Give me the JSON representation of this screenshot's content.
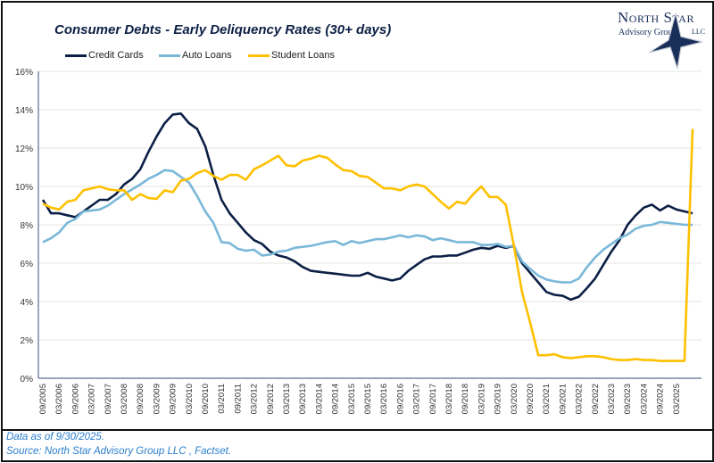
{
  "chart_data": {
    "type": "line",
    "title": "Consumer Debts - Early Deliquency Rates (30+ days)",
    "xlabel": "",
    "ylabel": "",
    "ylim": [
      0,
      16
    ],
    "yticks": [
      "0%",
      "2%",
      "4%",
      "6%",
      "8%",
      "10%",
      "12%",
      "14%",
      "16%"
    ],
    "grid": true,
    "legend_position": "top",
    "x": [
      "09/2005",
      "12/2005",
      "03/2006",
      "06/2006",
      "09/2006",
      "12/2006",
      "03/2007",
      "06/2007",
      "09/2007",
      "12/2007",
      "03/2008",
      "06/2008",
      "09/2008",
      "12/2008",
      "03/2009",
      "06/2009",
      "09/2009",
      "12/2009",
      "03/2010",
      "06/2010",
      "09/2010",
      "12/2010",
      "03/2011",
      "06/2011",
      "09/2011",
      "12/2011",
      "03/2012",
      "06/2012",
      "09/2012",
      "12/2012",
      "03/2013",
      "06/2013",
      "09/2013",
      "12/2013",
      "03/2014",
      "06/2014",
      "09/2014",
      "12/2014",
      "03/2015",
      "06/2015",
      "09/2015",
      "12/2015",
      "03/2016",
      "06/2016",
      "09/2016",
      "12/2016",
      "03/2017",
      "06/2017",
      "09/2017",
      "12/2017",
      "03/2018",
      "06/2018",
      "09/2018",
      "12/2018",
      "03/2019",
      "06/2019",
      "09/2019",
      "12/2019",
      "03/2020",
      "06/2020",
      "09/2020",
      "12/2020",
      "03/2021",
      "06/2021",
      "09/2021",
      "12/2021",
      "03/2022",
      "06/2022",
      "09/2022",
      "12/2022",
      "03/2023",
      "06/2023",
      "09/2023",
      "12/2023",
      "03/2024",
      "06/2024",
      "09/2024",
      "12/2024",
      "03/2025",
      "06/2025",
      "09/2025"
    ],
    "xticks": [
      "09/2005",
      "03/2006",
      "09/2006",
      "03/2007",
      "09/2007",
      "03/2008",
      "09/2008",
      "03/2009",
      "09/2009",
      "03/2010",
      "09/2010",
      "03/2011",
      "09/2011",
      "03/2012",
      "09/2012",
      "03/2013",
      "09/2013",
      "03/2014",
      "09/2014",
      "03/2015",
      "09/2015",
      "03/2016",
      "09/2016",
      "03/2017",
      "09/2017",
      "03/2018",
      "09/2018",
      "03/2019",
      "09/2019",
      "03/2020",
      "09/2020",
      "03/2021",
      "09/2021",
      "03/2022",
      "09/2022",
      "03/2023",
      "09/2023",
      "03/2024",
      "09/2024",
      "03/2025"
    ],
    "series": [
      {
        "name": "Credit Cards",
        "color": "#0c1f45",
        "values": [
          9.3,
          8.6,
          8.6,
          8.5,
          8.4,
          8.7,
          9.0,
          9.3,
          9.3,
          9.6,
          10.1,
          10.4,
          10.9,
          11.8,
          12.6,
          13.3,
          13.75,
          13.8,
          13.3,
          13.0,
          12.1,
          10.6,
          9.3,
          8.6,
          8.1,
          7.6,
          7.2,
          7.0,
          6.6,
          6.4,
          6.3,
          6.1,
          5.8,
          5.6,
          5.55,
          5.5,
          5.45,
          5.4,
          5.35,
          5.35,
          5.5,
          5.3,
          5.2,
          5.1,
          5.2,
          5.6,
          5.9,
          6.2,
          6.35,
          6.35,
          6.4,
          6.4,
          6.55,
          6.7,
          6.8,
          6.75,
          6.9,
          6.8,
          6.9,
          6.0,
          5.5,
          5.0,
          4.5,
          4.35,
          4.3,
          4.1,
          4.25,
          4.7,
          5.2,
          5.9,
          6.6,
          7.2,
          8.0,
          8.5,
          8.9,
          9.05,
          8.75,
          9.0,
          8.8,
          8.7,
          8.6
        ]
      },
      {
        "name": "Auto Loans",
        "color": "#7ab8d9",
        "values": [
          7.1,
          7.3,
          7.6,
          8.1,
          8.3,
          8.7,
          8.75,
          8.8,
          9.0,
          9.3,
          9.6,
          9.85,
          10.1,
          10.4,
          10.6,
          10.85,
          10.8,
          10.5,
          10.2,
          9.5,
          8.7,
          8.1,
          7.1,
          7.05,
          6.75,
          6.65,
          6.7,
          6.4,
          6.45,
          6.6,
          6.65,
          6.8,
          6.85,
          6.9,
          7.0,
          7.1,
          7.15,
          6.95,
          7.15,
          7.05,
          7.15,
          7.25,
          7.25,
          7.35,
          7.45,
          7.35,
          7.45,
          7.4,
          7.2,
          7.3,
          7.2,
          7.1,
          7.1,
          7.1,
          6.95,
          6.95,
          7.0,
          6.85,
          6.9,
          6.1,
          5.7,
          5.35,
          5.15,
          5.05,
          5.0,
          5.0,
          5.2,
          5.8,
          6.3,
          6.7,
          7.0,
          7.3,
          7.5,
          7.8,
          7.95,
          8.0,
          8.15,
          8.1,
          8.05,
          8.0,
          8.0
        ]
      },
      {
        "name": "Student Loans",
        "color": "#ffc000",
        "values": [
          9.1,
          8.9,
          8.8,
          9.2,
          9.3,
          9.8,
          9.9,
          10.0,
          9.85,
          9.8,
          9.8,
          9.3,
          9.6,
          9.4,
          9.35,
          9.8,
          9.7,
          10.3,
          10.4,
          10.7,
          10.85,
          10.55,
          10.35,
          10.6,
          10.6,
          10.35,
          10.9,
          11.1,
          11.35,
          11.6,
          11.1,
          11.05,
          11.35,
          11.45,
          11.6,
          11.5,
          11.15,
          10.85,
          10.8,
          10.55,
          10.5,
          10.2,
          9.9,
          9.9,
          9.8,
          10.0,
          10.1,
          10.0,
          9.6,
          9.2,
          8.85,
          9.2,
          9.1,
          9.6,
          10.0,
          9.45,
          9.45,
          9.05,
          6.9,
          4.5,
          2.9,
          1.2,
          1.2,
          1.25,
          1.1,
          1.05,
          1.1,
          1.15,
          1.15,
          1.1,
          1.0,
          0.95,
          0.95,
          1.0,
          0.95,
          0.95,
          0.9,
          0.9,
          0.9,
          0.9,
          13.0
        ]
      }
    ]
  },
  "logo": {
    "line1": "North Star",
    "line2": "Advisory Group",
    "line3": "LLC"
  },
  "footer": {
    "note": "Data as of 9/30/2025.",
    "source": "Source: North Star Advisory Group LLC , Factset."
  }
}
